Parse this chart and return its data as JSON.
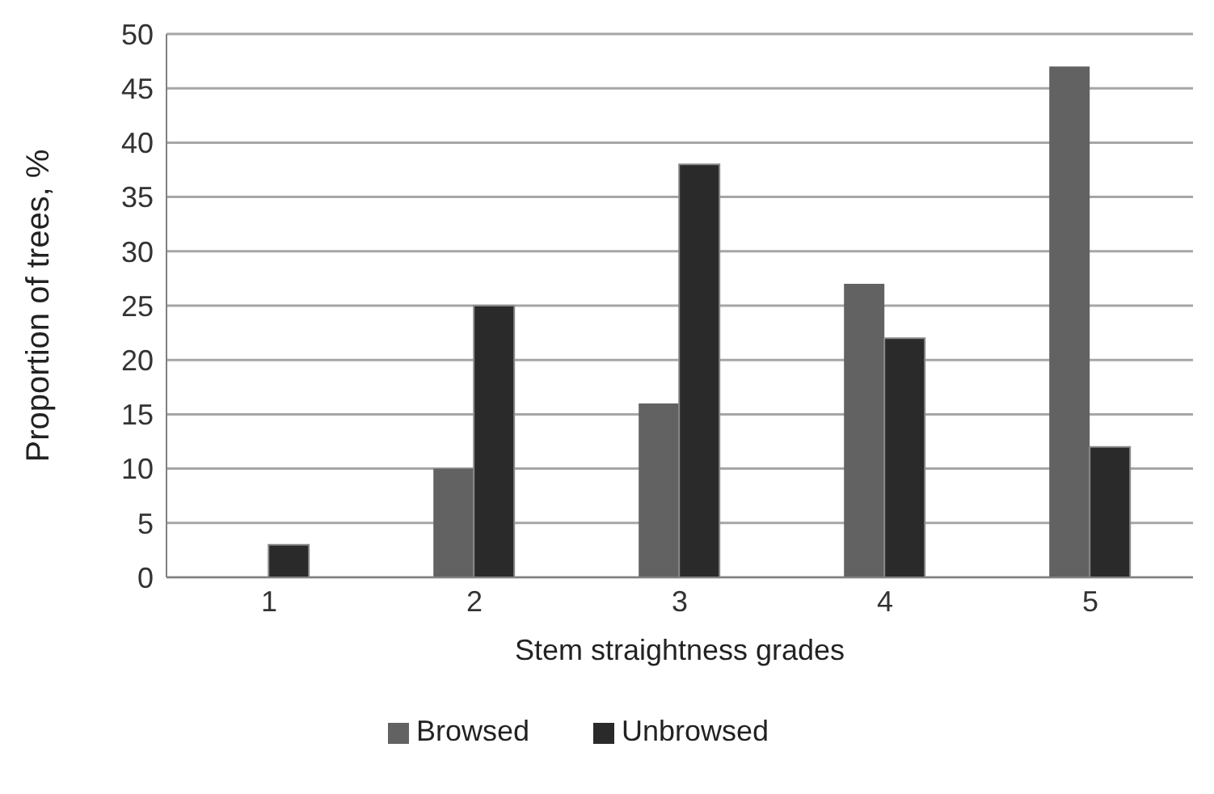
{
  "chart_data": {
    "type": "bar",
    "xlabel": "Stem straightness grades",
    "ylabel": "Proportion of trees, %",
    "categories": [
      "1",
      "2",
      "3",
      "4",
      "5"
    ],
    "series": [
      {
        "name": "Browsed",
        "color": "#626262",
        "values": [
          0,
          10,
          16,
          27,
          47
        ]
      },
      {
        "name": "Unbrowsed",
        "color": "#2a2a2a",
        "values": [
          3,
          25,
          38,
          22,
          12
        ]
      }
    ],
    "ylim": [
      0,
      50
    ],
    "yticks": [
      0,
      5,
      10,
      15,
      20,
      25,
      30,
      35,
      40,
      45,
      50
    ],
    "grid": "y",
    "legend": "bottom"
  }
}
